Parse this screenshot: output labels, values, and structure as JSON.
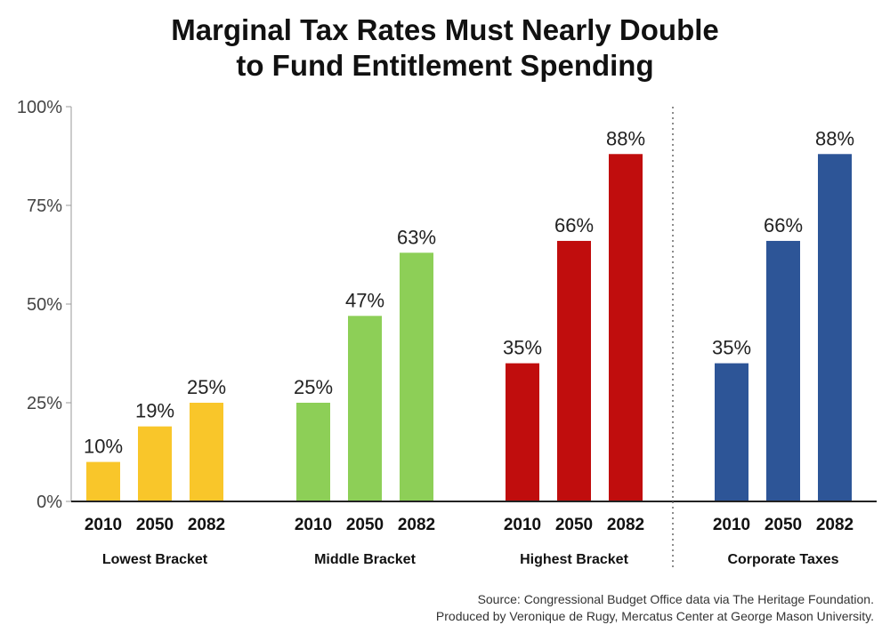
{
  "chart_data": {
    "type": "bar",
    "title_lines": [
      "Marginal Tax Rates Must Nearly Double",
      "to Fund Entitlement Spending"
    ],
    "y_ticks": [
      "0%",
      "25%",
      "50%",
      "75%",
      "100%"
    ],
    "ylim": [
      0,
      100
    ],
    "groups": [
      {
        "name": "Lowest Bracket",
        "color": "#F9C62A",
        "bars": [
          {
            "year": "2010",
            "value": 10,
            "label": "10%"
          },
          {
            "year": "2050",
            "value": 19,
            "label": "19%"
          },
          {
            "year": "2082",
            "value": 25,
            "label": "25%"
          }
        ]
      },
      {
        "name": "Middle Bracket",
        "color": "#8DCF57",
        "bars": [
          {
            "year": "2010",
            "value": 25,
            "label": "25%"
          },
          {
            "year": "2050",
            "value": 47,
            "label": "47%"
          },
          {
            "year": "2082",
            "value": 63,
            "label": "63%"
          }
        ]
      },
      {
        "name": "Highest Bracket",
        "color": "#C00D0D",
        "bars": [
          {
            "year": "2010",
            "value": 35,
            "label": "35%"
          },
          {
            "year": "2050",
            "value": 66,
            "label": "66%"
          },
          {
            "year": "2082",
            "value": 88,
            "label": "88%"
          }
        ]
      },
      {
        "name": "Corporate Taxes",
        "color": "#2D5597",
        "bars": [
          {
            "year": "2010",
            "value": 35,
            "label": "35%"
          },
          {
            "year": "2050",
            "value": 66,
            "label": "66%"
          },
          {
            "year": "2082",
            "value": 88,
            "label": "88%"
          }
        ]
      }
    ],
    "source_lines": [
      "Source: Congressional Budget Office data via The Heritage Foundation.",
      "Produced by Veronique de Rugy, Mercatus Center at George Mason University."
    ]
  }
}
